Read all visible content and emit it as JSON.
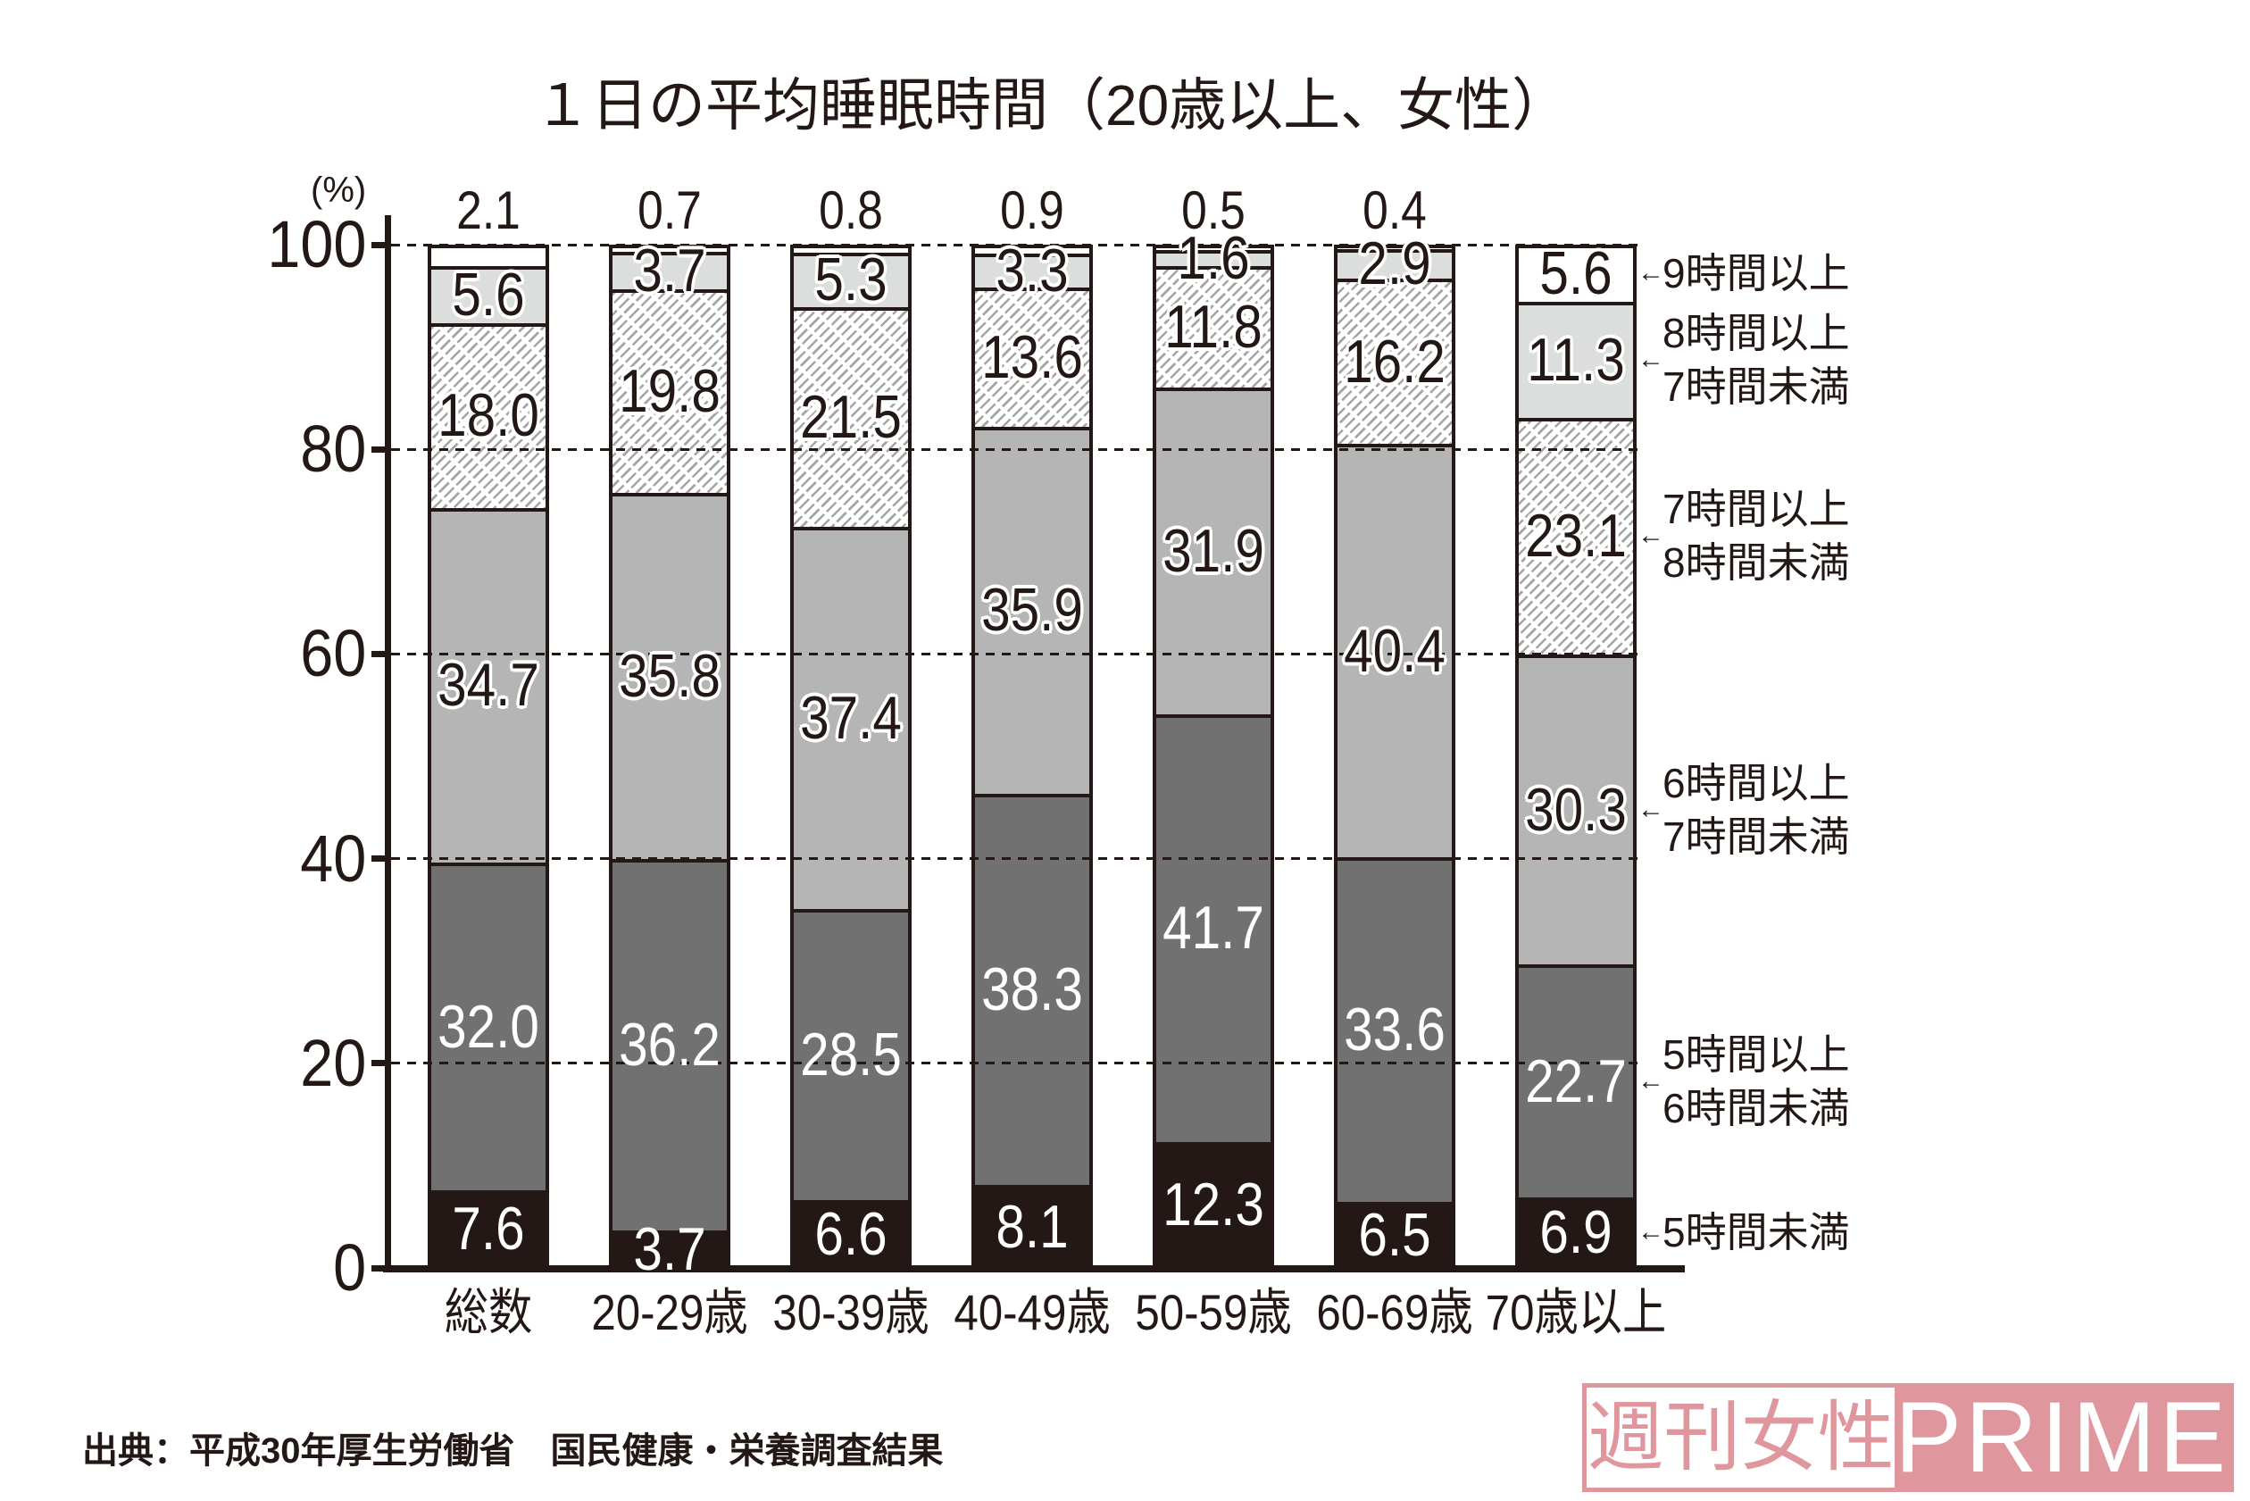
{
  "chart_data": {
    "type": "bar",
    "stacked": true,
    "title": "１日の平均睡眠時間（20歳以上、女性）",
    "xlabel": "",
    "ylabel": "(%)",
    "ylim": [
      0,
      100
    ],
    "yticks": [
      0,
      20,
      40,
      60,
      80,
      100
    ],
    "grid": true,
    "grid_style": "dashed-horizontal",
    "legend_position": "right",
    "legend_marker": "←",
    "categories": [
      "総数",
      "20-29歳",
      "30-39歳",
      "40-49歳",
      "50-59歳",
      "60-69歳",
      "70歳以上"
    ],
    "series": [
      {
        "name": "5時間未満",
        "legend_lines": [
          "5時間未満"
        ],
        "color": "#231815",
        "fill": "solid",
        "label_color": "#ffffff",
        "values": [
          7.6,
          3.7,
          6.6,
          8.1,
          12.3,
          6.5,
          6.9
        ]
      },
      {
        "name": "5時間以上6時間未満",
        "legend_lines": [
          "5時間以上",
          "6時間未満"
        ],
        "color": "#727171",
        "fill": "solid",
        "label_color": "#ffffff",
        "values": [
          32.0,
          36.2,
          28.5,
          38.3,
          41.7,
          33.6,
          22.7
        ]
      },
      {
        "name": "6時間以上7時間未満",
        "legend_lines": [
          "6時間以上",
          "7時間未満"
        ],
        "color": "#b5b5b6",
        "fill": "solid",
        "label_color": "#231815",
        "values": [
          34.7,
          35.8,
          37.4,
          35.9,
          31.9,
          40.4,
          30.3
        ]
      },
      {
        "name": "7時間以上8時間未満",
        "legend_lines": [
          "7時間以上",
          "8時間未満"
        ],
        "color": "#a5a5a5",
        "fill": "hatched",
        "label_color": "#231815",
        "values": [
          18.0,
          19.8,
          21.5,
          13.6,
          11.8,
          16.2,
          23.1
        ]
      },
      {
        "name": "8時間以上7時間未満",
        "legend_lines": [
          "8時間以上",
          "7時間未満"
        ],
        "color": "#dcdddd",
        "fill": "solid",
        "label_color": "#231815",
        "values": [
          5.6,
          3.7,
          5.3,
          3.3,
          1.6,
          2.9,
          11.3
        ]
      },
      {
        "name": "9時間以上",
        "legend_lines": [
          "9時間以上"
        ],
        "color": "#ffffff",
        "fill": "solid",
        "label_color": "#231815",
        "values": [
          2.1,
          0.7,
          0.8,
          0.9,
          0.5,
          0.4,
          5.6
        ]
      }
    ]
  },
  "source": "出典：平成30年厚生労働省　国民健康・栄養調査結果",
  "logo": {
    "left_text": "週刊女性",
    "right_text": "PRIME",
    "color": "#df969d"
  },
  "colors": {
    "ink": "#231815",
    "background": "#ffffff"
  }
}
